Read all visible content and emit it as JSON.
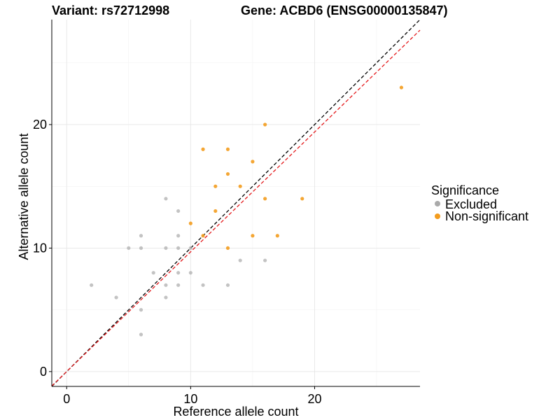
{
  "chart_data": {
    "type": "scatter",
    "title": "Variant: rs72712998",
    "subtitle": "Gene: ACBD6 (ENSG00000135847)",
    "xlabel": "Reference allele count",
    "ylabel": "Alternative allele count",
    "xlim": [
      -1.2,
      28.5
    ],
    "ylim": [
      -1.2,
      28.5
    ],
    "x_ticks": [
      0,
      10,
      20
    ],
    "y_ticks": [
      0,
      10,
      20
    ],
    "grid": true,
    "legend": {
      "title": "Significance",
      "position": "right"
    },
    "series": [
      {
        "name": "Excluded",
        "color": "#aaaaaa",
        "points": [
          [
            2,
            7
          ],
          [
            4,
            6
          ],
          [
            5,
            10
          ],
          [
            6,
            11
          ],
          [
            6,
            10
          ],
          [
            6,
            5
          ],
          [
            6,
            3
          ],
          [
            7,
            8
          ],
          [
            8,
            14
          ],
          [
            8,
            10
          ],
          [
            8,
            7
          ],
          [
            8,
            6
          ],
          [
            9,
            13
          ],
          [
            9,
            11
          ],
          [
            9,
            10
          ],
          [
            9,
            8
          ],
          [
            9,
            7
          ],
          [
            10,
            10
          ],
          [
            10,
            8
          ],
          [
            11,
            7
          ],
          [
            13,
            7
          ],
          [
            14,
            9
          ],
          [
            16,
            9
          ]
        ]
      },
      {
        "name": "Non-significant",
        "color": "#f39c1e",
        "points": [
          [
            10,
            12
          ],
          [
            11,
            18
          ],
          [
            11,
            11
          ],
          [
            12,
            15
          ],
          [
            12,
            13
          ],
          [
            13,
            18
          ],
          [
            13,
            16
          ],
          [
            13,
            10
          ],
          [
            14,
            15
          ],
          [
            15,
            17
          ],
          [
            15,
            11
          ],
          [
            16,
            20
          ],
          [
            16,
            14
          ],
          [
            17,
            11
          ],
          [
            19,
            14
          ],
          [
            27,
            23
          ]
        ]
      }
    ],
    "reference_lines": [
      {
        "color": "#000000",
        "style": "dashed",
        "slope": 1.0
      },
      {
        "color": "#e41a1c",
        "style": "dashed",
        "slope": 0.97
      }
    ]
  }
}
